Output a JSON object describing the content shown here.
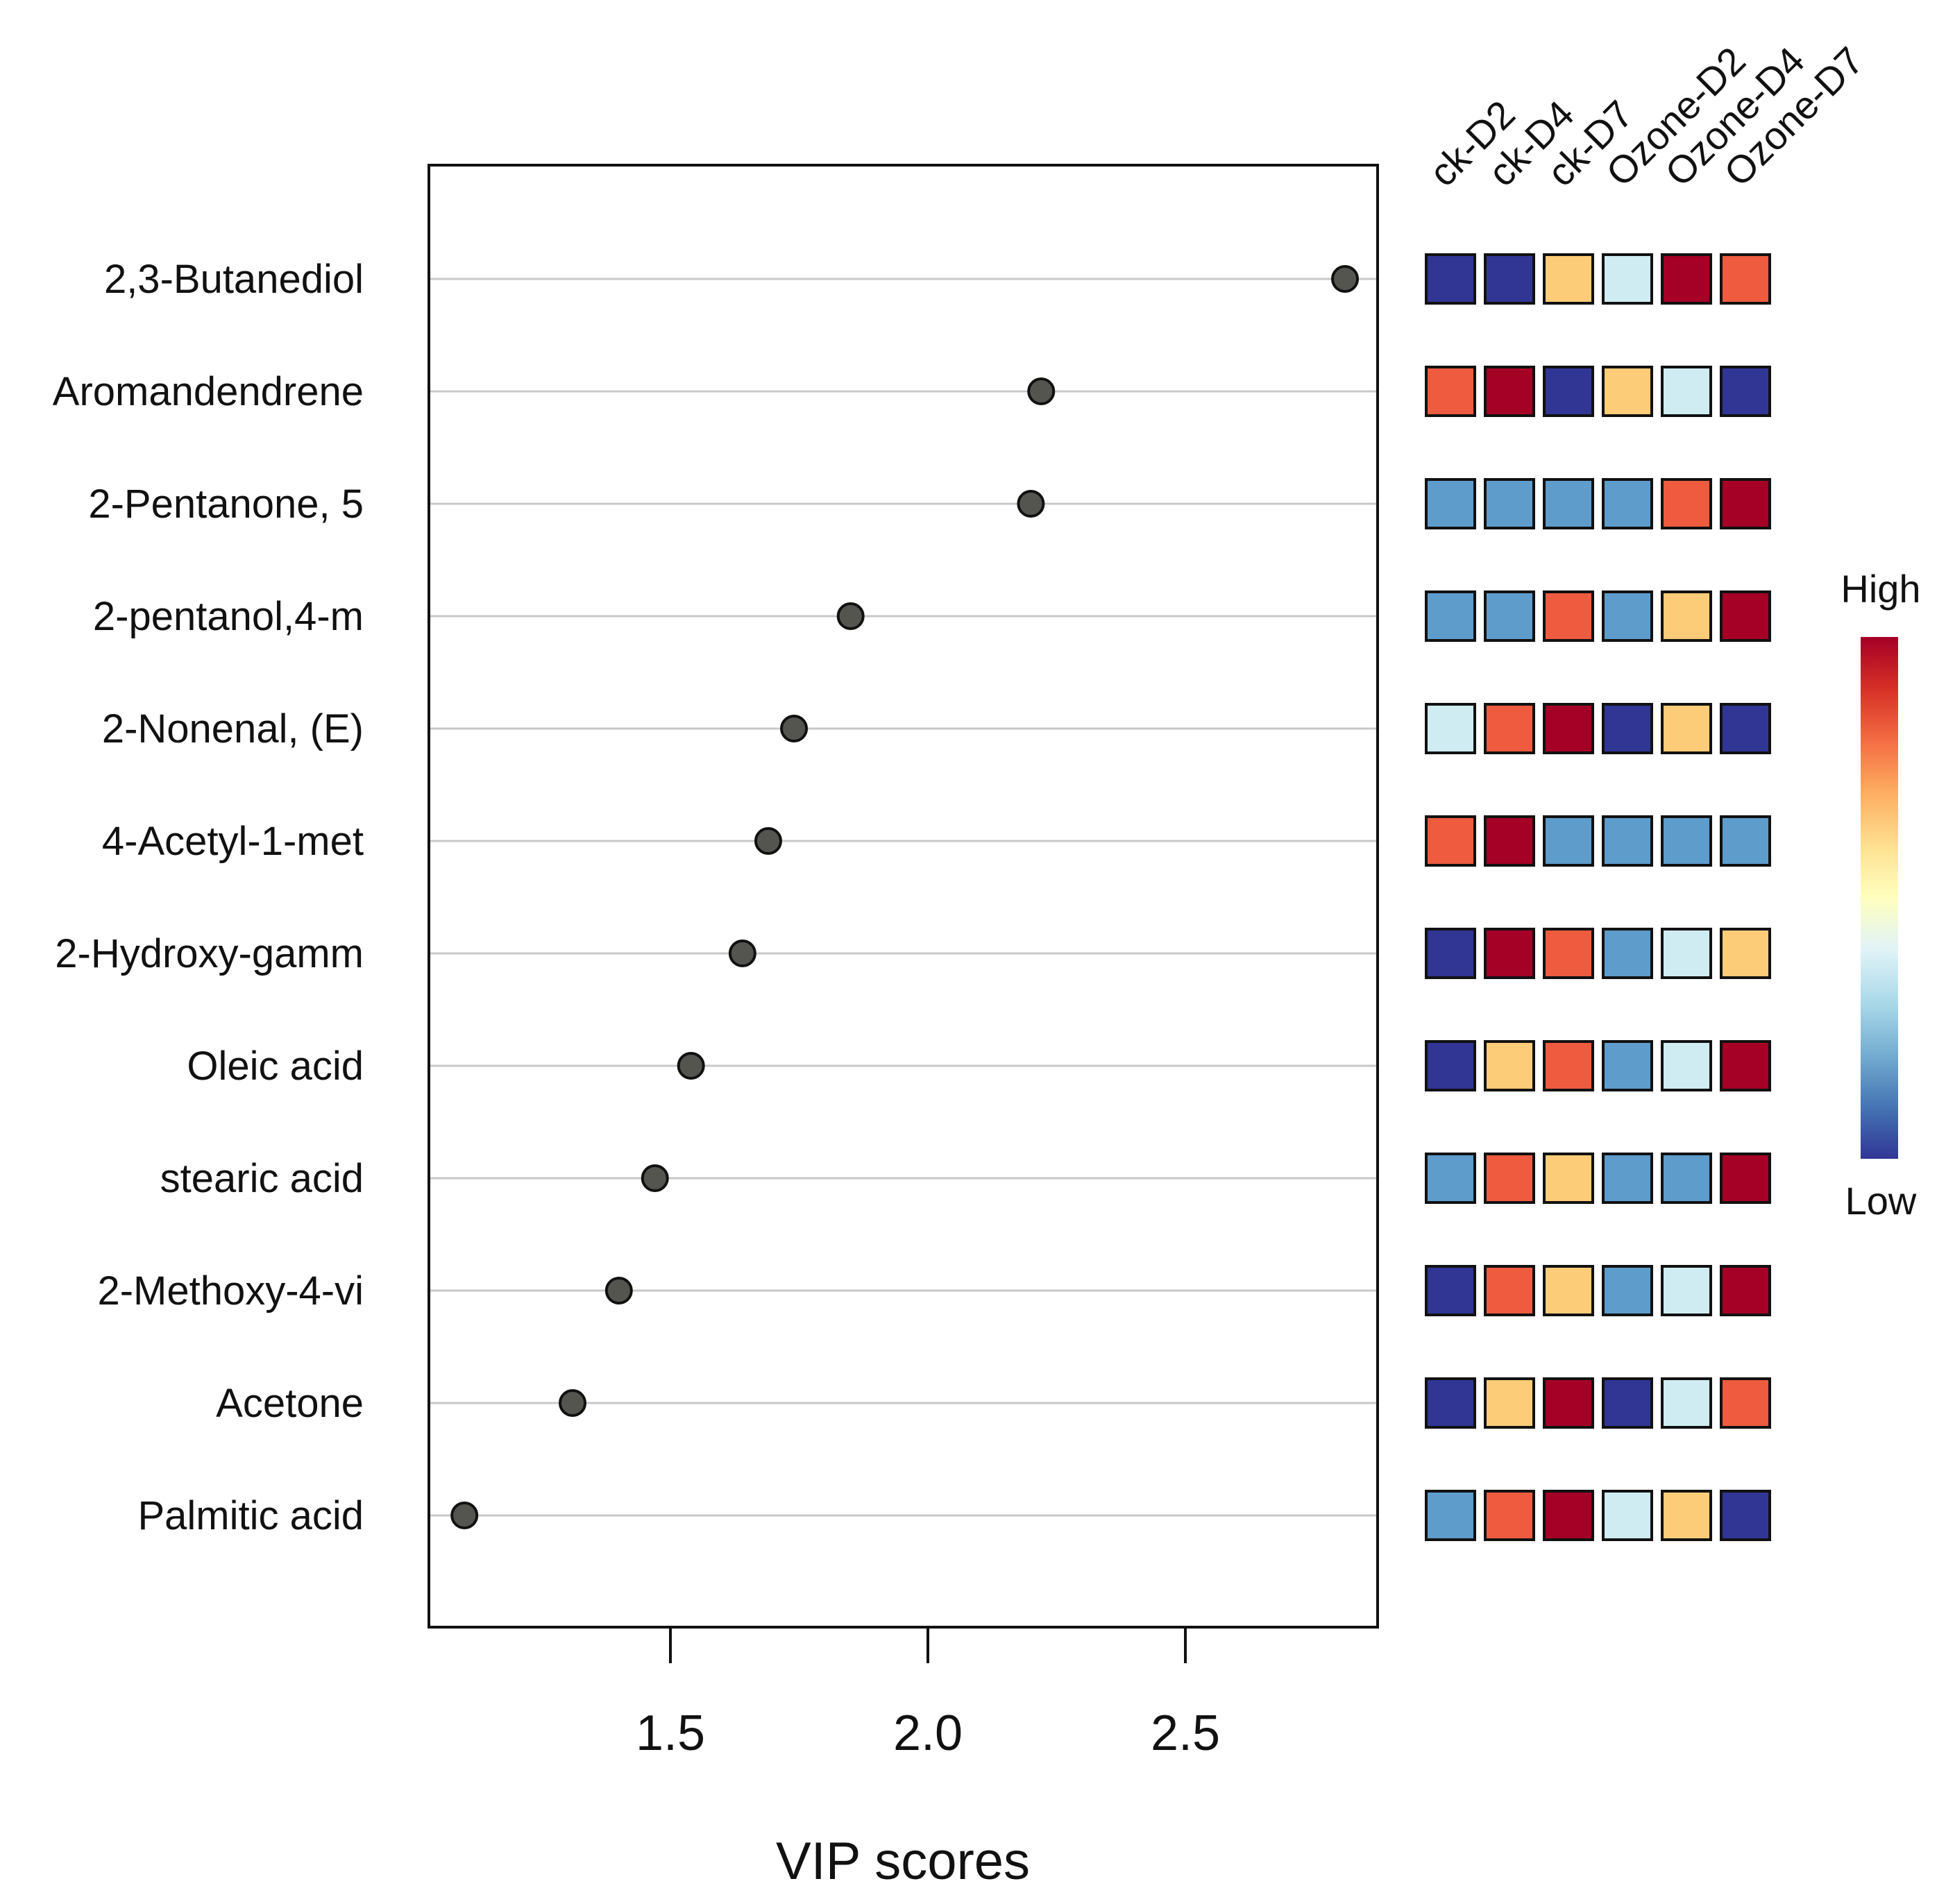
{
  "chart_data": {
    "type": "scatter",
    "title": "",
    "xlabel": "VIP scores",
    "ylabel": "",
    "xlim": [
      1.03,
      2.87
    ],
    "xticks": [
      1.5,
      2.0,
      2.5
    ],
    "xtick_labels": [
      "1.5",
      "2.0",
      "2.5"
    ],
    "grid": "horizontal lines per compound",
    "compounds": [
      "2,3-Butanediol",
      "Aromandendrene",
      "2-Pentanone, 5",
      "2-pentanol,4-m",
      "2-Nonenal, (E)",
      "4-Acetyl-1-met",
      "2-Hydroxy-gamm",
      "Oleic acid",
      "stearic acid",
      "2-Methoxy-4-vi",
      "Acetone",
      "Palmitic acid"
    ],
    "vip_scores": [
      2.81,
      2.22,
      2.2,
      1.85,
      1.74,
      1.69,
      1.64,
      1.54,
      1.47,
      1.4,
      1.31,
      1.1
    ],
    "heatmap": {
      "columns": [
        "ck-D2",
        "ck-D4",
        "ck-D7",
        "Ozone-D2",
        "Ozone-D4",
        "Ozone-D7"
      ],
      "scale_levels": {
        "0": "#313695",
        "1": "#5e9ccc",
        "2": "#d0ecf3",
        "3": "#fdcc78",
        "4": "#ee5b3f",
        "5": "#a50026"
      },
      "rows": [
        [
          0,
          0,
          3,
          2,
          5,
          4
        ],
        [
          4,
          5,
          0,
          3,
          2,
          0
        ],
        [
          1,
          1,
          1,
          1,
          4,
          5
        ],
        [
          1,
          1,
          4,
          1,
          3,
          5
        ],
        [
          2,
          4,
          5,
          0,
          3,
          0
        ],
        [
          4,
          5,
          1,
          1,
          1,
          1
        ],
        [
          0,
          5,
          4,
          1,
          2,
          3
        ],
        [
          0,
          3,
          4,
          1,
          2,
          5
        ],
        [
          1,
          4,
          3,
          1,
          1,
          5
        ],
        [
          0,
          4,
          3,
          1,
          2,
          5
        ],
        [
          0,
          3,
          5,
          0,
          2,
          4
        ],
        [
          1,
          4,
          5,
          2,
          3,
          0
        ]
      ]
    },
    "legend": {
      "high_label": "High",
      "low_label": "Low",
      "position": "right",
      "gradient": [
        "#313695",
        "#4575b4",
        "#74add1",
        "#abd9e9",
        "#e0f3f8",
        "#ffffbf",
        "#fee090",
        "#fdae61",
        "#f46d43",
        "#d73027",
        "#a50026"
      ]
    },
    "marker_color": "#555550"
  }
}
